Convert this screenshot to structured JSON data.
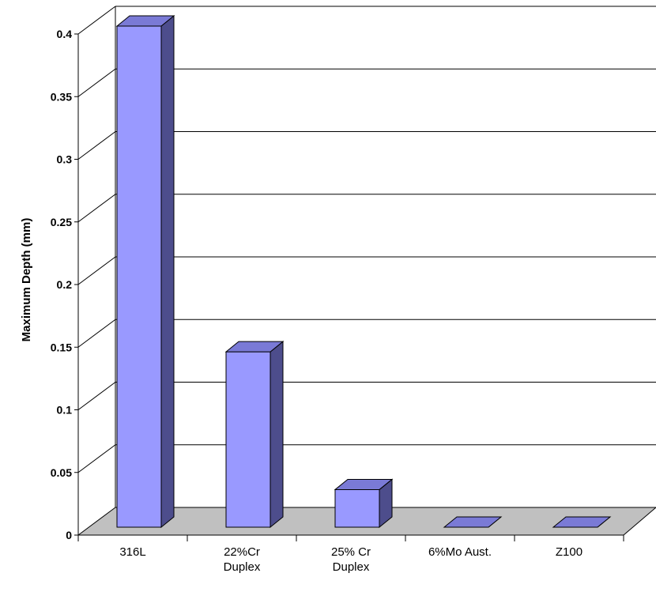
{
  "chart_data": {
    "type": "bar",
    "title": "",
    "xlabel": "",
    "ylabel": "Maximum Depth (mm)",
    "ylim": [
      0,
      0.4
    ],
    "yticks": [
      "0",
      "0.05",
      "0.1",
      "0.15",
      "0.2",
      "0.25",
      "0.3",
      "0.35",
      "0.4"
    ],
    "categories": [
      [
        "316L"
      ],
      [
        "22%Cr",
        "Duplex"
      ],
      [
        "25% Cr",
        "Duplex"
      ],
      [
        "6%Mo Aust."
      ],
      [
        "Z100"
      ]
    ],
    "values": [
      0.4,
      0.14,
      0.03,
      0.0,
      0.0
    ],
    "grid": true,
    "three_d": true,
    "colors": {
      "bar_front": "#9999ff",
      "bar_top": "#7a7ad6",
      "bar_side": "#4d4d8c",
      "floor": "#c0c0c0"
    }
  }
}
